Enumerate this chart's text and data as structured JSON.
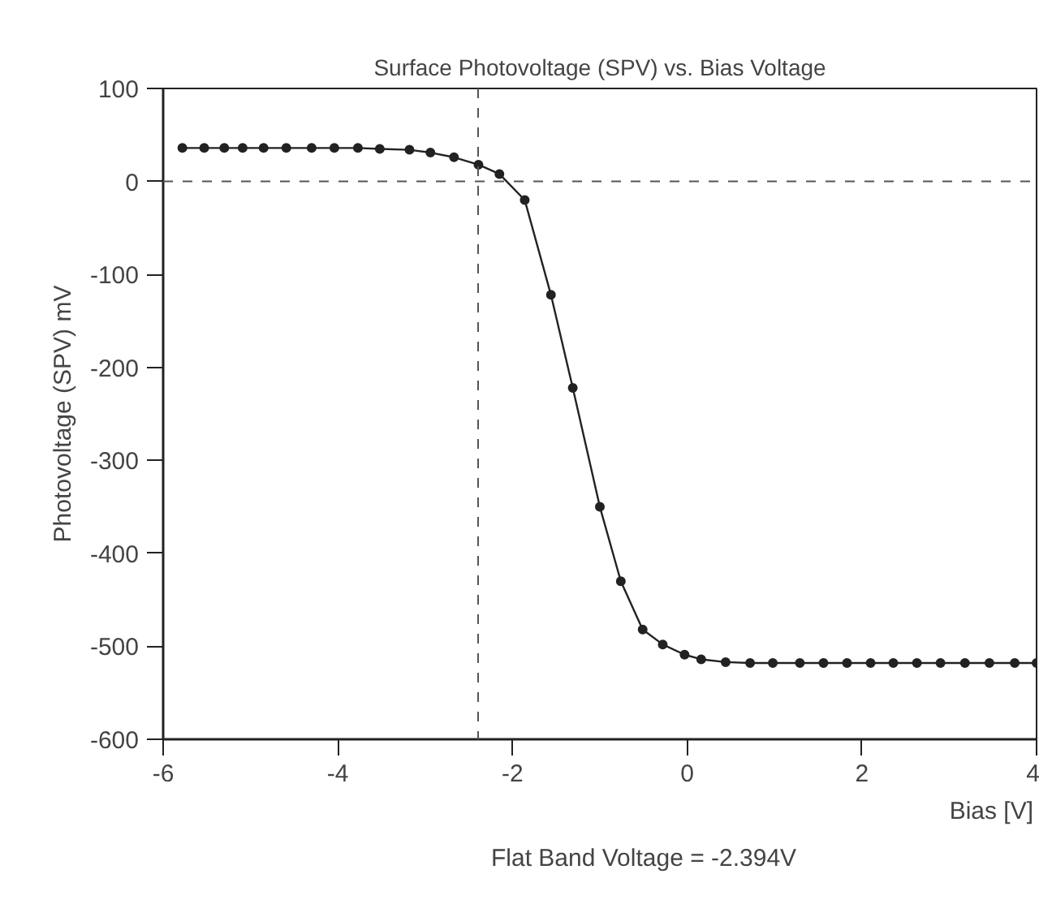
{
  "chart_data": {
    "type": "line",
    "title": "Surface Photovoltage (SPV) vs. Bias Voltage",
    "xlabel": "Bias [V]",
    "ylabel": "Photovoltage (SPV) mV",
    "x": [
      -5.78,
      -5.53,
      -5.3,
      -5.09,
      -4.85,
      -4.59,
      -4.3,
      -4.04,
      -3.77,
      -3.52,
      -3.18,
      -2.94,
      -2.67,
      -2.39,
      -2.15,
      -1.86,
      -1.56,
      -1.31,
      -1.0,
      -0.76,
      -0.51,
      -0.28,
      -0.03,
      0.16,
      0.44,
      0.72,
      0.98,
      1.29,
      1.56,
      1.83,
      2.1,
      2.36,
      2.63,
      2.9,
      3.18,
      3.46,
      3.75,
      4.0
    ],
    "series": [
      {
        "color": "#222222",
        "values": [
          36,
          36,
          36,
          36,
          36,
          36,
          36,
          36,
          36,
          35,
          34,
          31,
          26,
          18,
          8,
          -20,
          -122,
          -222,
          -350,
          -430,
          -482,
          -498,
          -509,
          -514,
          -517,
          -518,
          -518,
          -518,
          -518,
          -518,
          -518,
          -518,
          -518,
          -518,
          -518,
          -518,
          -518,
          -518
        ]
      }
    ],
    "xlim": [
      -6,
      4
    ],
    "xticks": [
      -6,
      -4,
      -2,
      0,
      2,
      4
    ],
    "ylim": [
      -600,
      100
    ],
    "yticks": [
      -600,
      -500,
      -400,
      -300,
      -200,
      -100,
      0,
      100
    ],
    "ref_lines": [
      {
        "axis": "y",
        "value": 0,
        "line_style": "dashed",
        "color": "#555555"
      },
      {
        "axis": "x",
        "value": -2.394,
        "label": "Flat Band Voltage = -2.394V",
        "line_style": "dashed",
        "color": "#555555"
      }
    ],
    "grid": false,
    "marker": "circle",
    "line_style": "solid"
  }
}
